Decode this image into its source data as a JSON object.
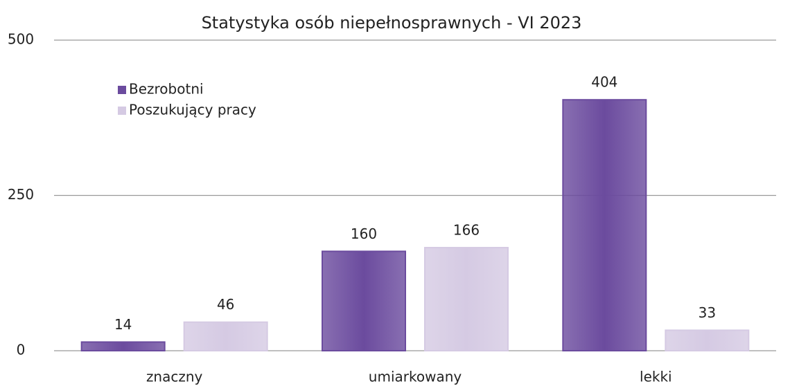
{
  "chart_data": {
    "type": "bar",
    "title": "Statystyka osób niepełnosprawnych - VI 2023",
    "categories": [
      "znaczny",
      "umiarkowany",
      "lekki"
    ],
    "series": [
      {
        "name": "Bezrobotni",
        "color": "#6b4b9e",
        "values": [
          14,
          160,
          404
        ]
      },
      {
        "name": "Poszukujący pracy",
        "color": "#d5cae3",
        "values": [
          46,
          166,
          33
        ]
      }
    ],
    "ylim": [
      0,
      500
    ],
    "yticks": [
      0,
      250,
      500
    ],
    "grid": true,
    "legend": "upper left"
  }
}
